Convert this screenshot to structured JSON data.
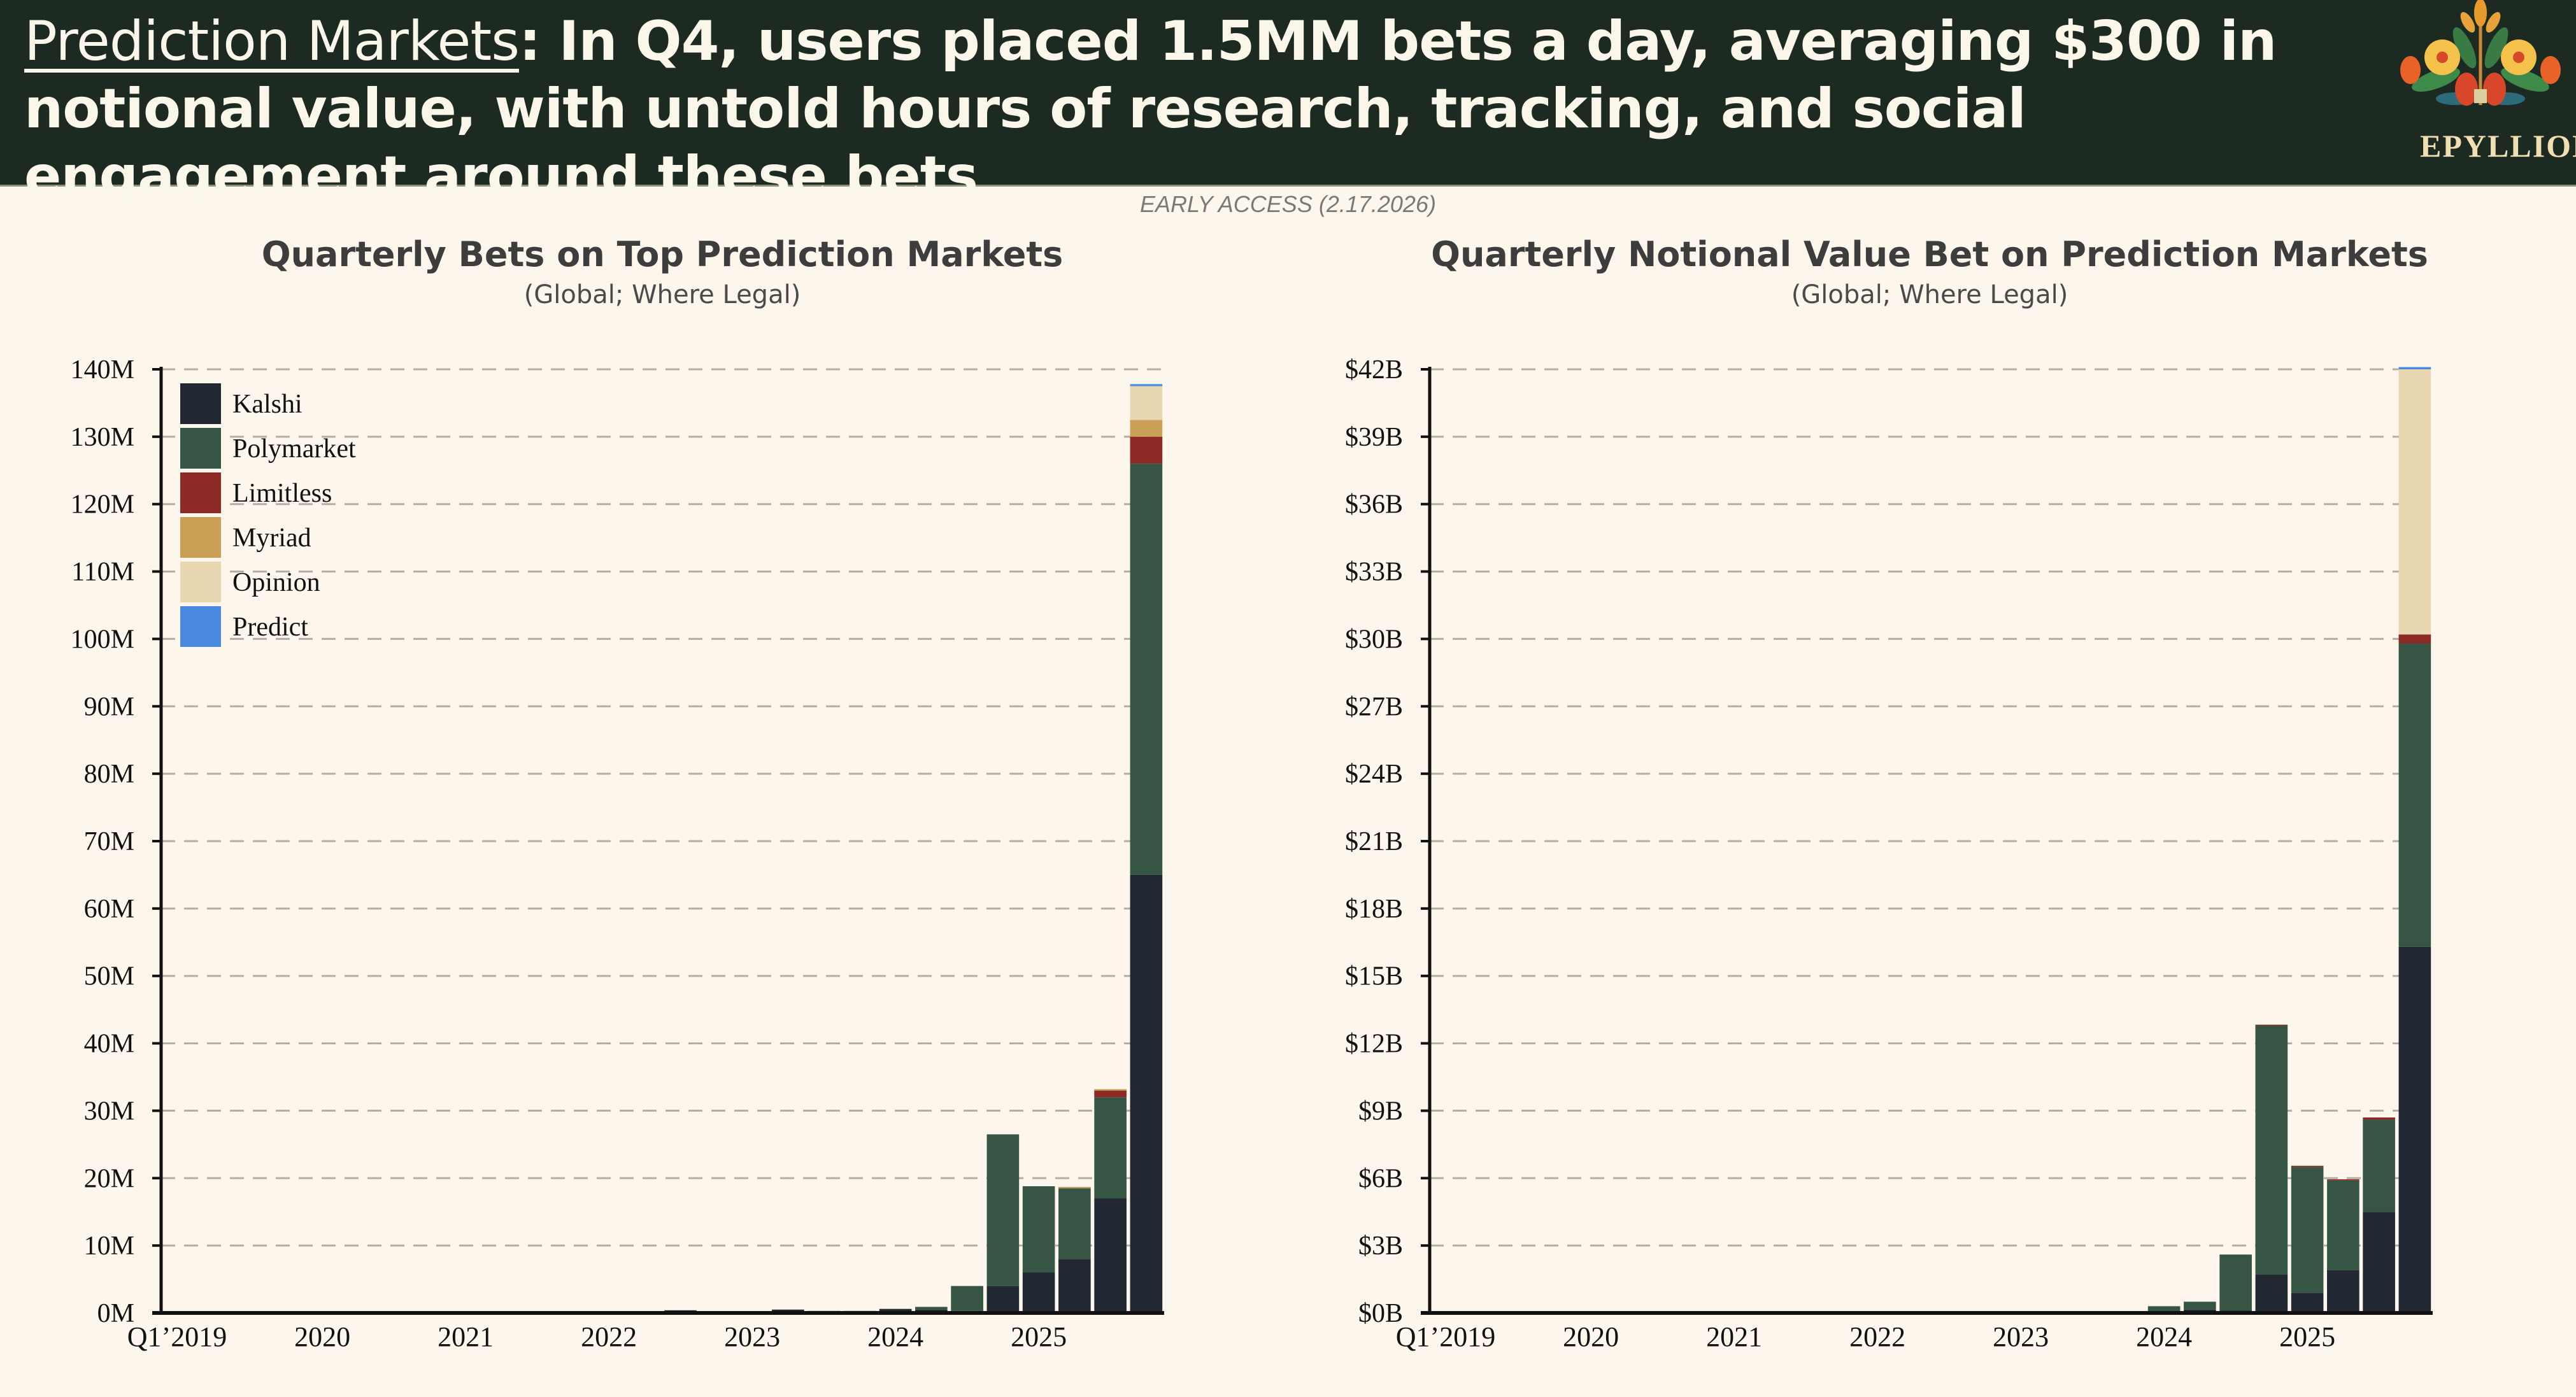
{
  "header": {
    "headline_lead": "Prediction Markets",
    "headline_rest": ": In Q4, users placed 1.5MM bets a day, averaging $300 in notional value, with untold hours of research, tracking, and social engagement around these bets",
    "logo_text": "EPYLLION"
  },
  "early_access": "EARLY ACCESS (2.17.2026)",
  "colors": {
    "Kalshi": "#222831",
    "Polymarket": "#375545",
    "Limitless": "#8e2a25",
    "Myriad": "#c9a055",
    "Opinion": "#e8d7b0",
    "Predict": "#4a8ae0"
  },
  "chart_data": [
    {
      "type": "bar",
      "stacked": true,
      "title": "Quarterly Bets on Top Prediction Markets",
      "subtitle": "(Global; Where Legal)",
      "xlabel": "",
      "ylabel": "",
      "ylim": [
        0,
        140
      ],
      "yticks": [
        0,
        10,
        20,
        30,
        40,
        50,
        60,
        70,
        80,
        90,
        100,
        110,
        120,
        130,
        140
      ],
      "ytick_labels": [
        "0M",
        "10M",
        "20M",
        "30M",
        "40M",
        "50M",
        "60M",
        "70M",
        "80M",
        "90M",
        "100M",
        "110M",
        "120M",
        "130M",
        "140M"
      ],
      "xtick_labels": [
        "Q1’2019",
        "2020",
        "2021",
        "2022",
        "2023",
        "2024",
        "2025"
      ],
      "xtick_indices": [
        0,
        4,
        8,
        12,
        16,
        20,
        24
      ],
      "grid": true,
      "legend": "top-left",
      "categories": [
        "Q1 2019",
        "Q2 2019",
        "Q3 2019",
        "Q4 2019",
        "Q1 2020",
        "Q2 2020",
        "Q3 2020",
        "Q4 2020",
        "Q1 2021",
        "Q2 2021",
        "Q3 2021",
        "Q4 2021",
        "Q1 2022",
        "Q2 2022",
        "Q3 2022",
        "Q4 2022",
        "Q1 2023",
        "Q2 2023",
        "Q3 2023",
        "Q4 2023",
        "Q1 2024",
        "Q2 2024",
        "Q3 2024",
        "Q4 2024",
        "Q1 2025",
        "Q2 2025",
        "Q3 2025",
        "Q4 2025"
      ],
      "series": [
        {
          "name": "Kalshi",
          "values": [
            0,
            0,
            0,
            0,
            0,
            0,
            0,
            0,
            0,
            0,
            0,
            0,
            0,
            0.1,
            0.4,
            0.2,
            0.2,
            0.5,
            0.3,
            0.3,
            0.6,
            0.5,
            0.3,
            4,
            6,
            8,
            17,
            65
          ]
        },
        {
          "name": "Polymarket",
          "values": [
            0,
            0,
            0,
            0,
            0,
            0,
            0,
            0,
            0,
            0,
            0,
            0,
            0,
            0,
            0,
            0,
            0,
            0,
            0,
            0,
            0,
            0.4,
            3.7,
            22.5,
            12.8,
            10.5,
            15,
            61
          ]
        },
        {
          "name": "Limitless",
          "values": [
            0,
            0,
            0,
            0,
            0,
            0,
            0,
            0,
            0,
            0,
            0,
            0,
            0,
            0,
            0,
            0,
            0,
            0,
            0,
            0,
            0,
            0,
            0,
            0,
            0,
            0,
            1,
            4
          ]
        },
        {
          "name": "Myriad",
          "values": [
            0,
            0,
            0,
            0,
            0,
            0,
            0,
            0,
            0,
            0,
            0,
            0,
            0,
            0,
            0,
            0,
            0,
            0,
            0,
            0,
            0,
            0,
            0,
            0,
            0,
            0.2,
            0.2,
            2.5
          ]
        },
        {
          "name": "Opinion",
          "values": [
            0,
            0,
            0,
            0,
            0,
            0,
            0,
            0,
            0,
            0,
            0,
            0,
            0,
            0,
            0,
            0,
            0,
            0,
            0,
            0,
            0,
            0,
            0,
            0,
            0,
            0,
            0,
            5
          ]
        },
        {
          "name": "Predict",
          "values": [
            0,
            0,
            0,
            0,
            0,
            0,
            0,
            0,
            0,
            0,
            0,
            0,
            0,
            0,
            0,
            0,
            0,
            0,
            0,
            0,
            0,
            0,
            0,
            0,
            0,
            0,
            0,
            0.3
          ]
        }
      ]
    },
    {
      "type": "bar",
      "stacked": true,
      "title": "Quarterly Notional Value Bet on Prediction Markets",
      "subtitle": "(Global; Where Legal)",
      "xlabel": "",
      "ylabel": "",
      "ylim": [
        0,
        42
      ],
      "yticks": [
        0,
        3,
        6,
        9,
        12,
        15,
        18,
        21,
        24,
        27,
        30,
        33,
        36,
        39,
        42
      ],
      "ytick_labels": [
        "$0B",
        "$3B",
        "$6B",
        "$9B",
        "$12B",
        "$15B",
        "$18B",
        "$21B",
        "$24B",
        "$27B",
        "$30B",
        "$33B",
        "$36B",
        "$39B",
        "$42B"
      ],
      "xtick_labels": [
        "Q1’2019",
        "2020",
        "2021",
        "2022",
        "2023",
        "2024",
        "2025"
      ],
      "xtick_indices": [
        0,
        4,
        8,
        12,
        16,
        20,
        24
      ],
      "grid": true,
      "legend": "none",
      "categories": [
        "Q1 2019",
        "Q2 2019",
        "Q3 2019",
        "Q4 2019",
        "Q1 2020",
        "Q2 2020",
        "Q3 2020",
        "Q4 2020",
        "Q1 2021",
        "Q2 2021",
        "Q3 2021",
        "Q4 2021",
        "Q1 2022",
        "Q2 2022",
        "Q3 2022",
        "Q4 2022",
        "Q1 2023",
        "Q2 2023",
        "Q3 2023",
        "Q4 2023",
        "Q1 2024",
        "Q2 2024",
        "Q3 2024",
        "Q4 2024",
        "Q1 2025",
        "Q2 2025",
        "Q3 2025",
        "Q4 2025"
      ],
      "series": [
        {
          "name": "Kalshi",
          "values": [
            0,
            0,
            0,
            0,
            0,
            0,
            0,
            0,
            0,
            0,
            0,
            0,
            0,
            0,
            0,
            0,
            0,
            0.04,
            0.05,
            0.06,
            0.05,
            0.15,
            0.1,
            1.7,
            0.9,
            1.9,
            4.5,
            16.3
          ]
        },
        {
          "name": "Polymarket",
          "values": [
            0,
            0,
            0,
            0,
            0,
            0,
            0,
            0,
            0,
            0,
            0,
            0,
            0,
            0,
            0,
            0,
            0,
            0,
            0,
            0,
            0.25,
            0.35,
            2.5,
            11.1,
            5.6,
            4.0,
            4.1,
            13.5
          ]
        },
        {
          "name": "Limitless",
          "values": [
            0,
            0,
            0,
            0,
            0,
            0,
            0,
            0,
            0,
            0,
            0,
            0,
            0,
            0,
            0,
            0,
            0,
            0,
            0,
            0,
            0,
            0,
            0,
            0.03,
            0.05,
            0.05,
            0.1,
            0.4
          ]
        },
        {
          "name": "Myriad",
          "values": [
            0,
            0,
            0,
            0,
            0,
            0,
            0,
            0,
            0,
            0,
            0,
            0,
            0,
            0,
            0,
            0,
            0,
            0,
            0,
            0,
            0,
            0,
            0,
            0,
            0,
            0,
            0,
            0
          ]
        },
        {
          "name": "Opinion",
          "values": [
            0,
            0,
            0,
            0,
            0,
            0,
            0,
            0,
            0,
            0,
            0,
            0,
            0,
            0,
            0,
            0,
            0,
            0,
            0,
            0,
            0,
            0,
            0,
            0,
            0,
            0,
            0,
            11.8
          ]
        },
        {
          "name": "Predict",
          "values": [
            0,
            0,
            0,
            0,
            0,
            0,
            0,
            0,
            0,
            0,
            0,
            0,
            0,
            0,
            0,
            0,
            0,
            0,
            0,
            0,
            0,
            0,
            0,
            0,
            0,
            0,
            0,
            0.1
          ]
        }
      ]
    }
  ]
}
